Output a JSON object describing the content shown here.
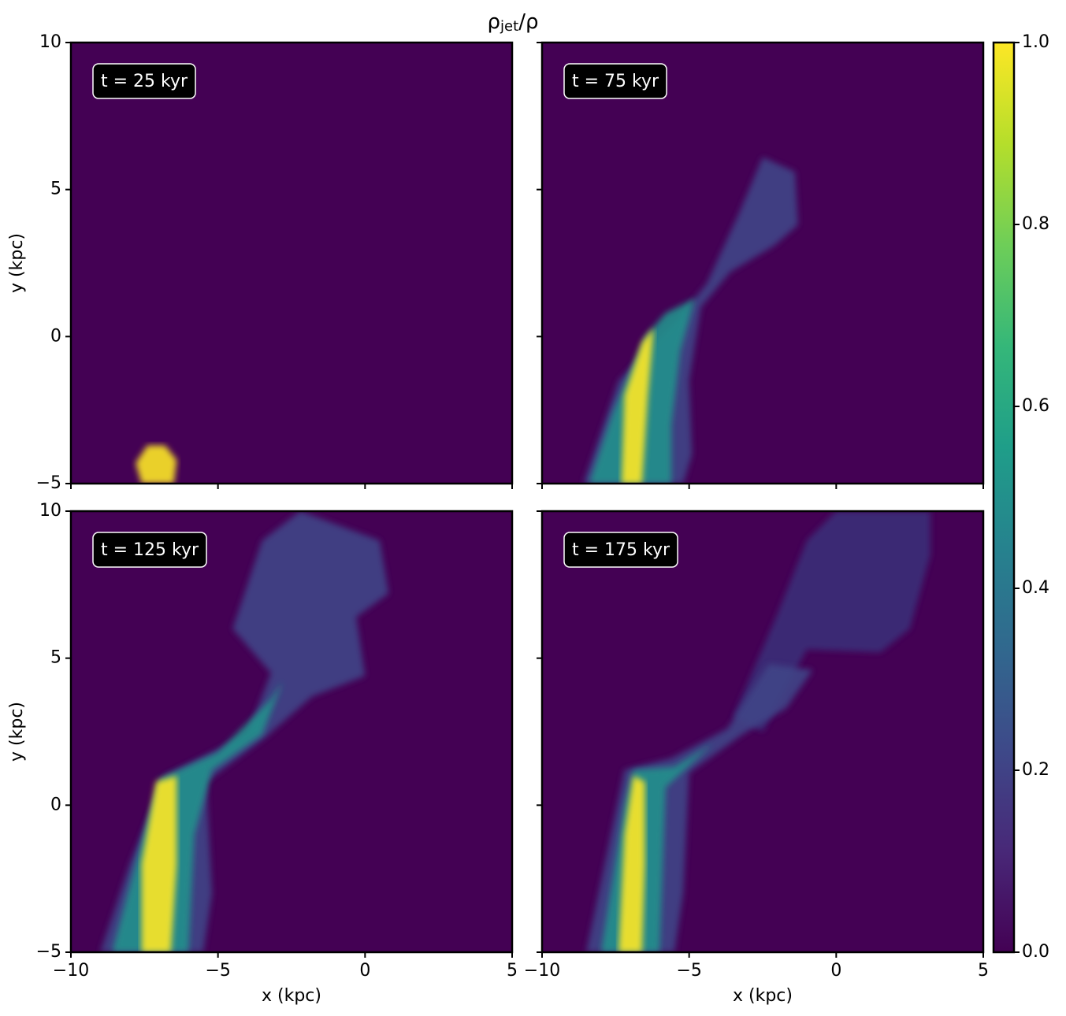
{
  "figure": {
    "title": [
      "ρ",
      "jet",
      "/ρ"
    ]
  },
  "colorbar": {
    "ylim": [
      0,
      1
    ],
    "colors": [
      "#440154",
      "#482878",
      "#3e4989",
      "#31688e",
      "#26828e",
      "#1f9e89",
      "#35b779",
      "#6ece58",
      "#b5de2b",
      "#fde725"
    ],
    "yticks": [
      {
        "value": 0,
        "label": "0.0"
      },
      0.2,
      0.4,
      0.6,
      0.8,
      {
        "value": 1,
        "label": "1.0"
      }
    ]
  },
  "chart_data": [
    {
      "type": "image",
      "annotation": "t = 25 kyr",
      "ylabel": "y (kpc)",
      "xlim": [
        -10,
        5
      ],
      "ylim": [
        -5,
        10
      ],
      "xticks": [
        -10,
        -5,
        0,
        5
      ],
      "yticks": [
        {
          "value": -5,
          "label": "−5"
        },
        0,
        5,
        10
      ],
      "background": "#440154"
    },
    {
      "type": "image",
      "annotation": "t = 75 kyr",
      "xlim": [
        -10,
        5
      ],
      "ylim": [
        -5,
        10
      ],
      "xticks": [
        -10,
        -5,
        0,
        5
      ],
      "yticks": [
        -5,
        0,
        5,
        10
      ],
      "background": "#440154"
    },
    {
      "type": "image",
      "annotation": "t = 125 kyr",
      "xlabel": "x (kpc)",
      "ylabel": "y (kpc)",
      "xlim": [
        -10,
        5
      ],
      "ylim": [
        -5,
        10
      ],
      "xticks": [
        {
          "value": -10,
          "label": "−10"
        },
        {
          "value": -5,
          "label": "−5"
        },
        0,
        5
      ],
      "yticks": [
        {
          "value": -5,
          "label": "−5"
        },
        0,
        5,
        10
      ],
      "background": "#440154"
    },
    {
      "type": "image",
      "annotation": "t = 175 kyr",
      "xlabel": "x (kpc)",
      "xlim": [
        -10,
        5
      ],
      "ylim": [
        -5,
        10
      ],
      "xticks": [
        {
          "value": -10,
          "label": "−10"
        },
        {
          "value": -5,
          "label": "−5"
        },
        0,
        5
      ],
      "yticks": [
        -5,
        0,
        5,
        10
      ],
      "background": "#440154"
    }
  ]
}
